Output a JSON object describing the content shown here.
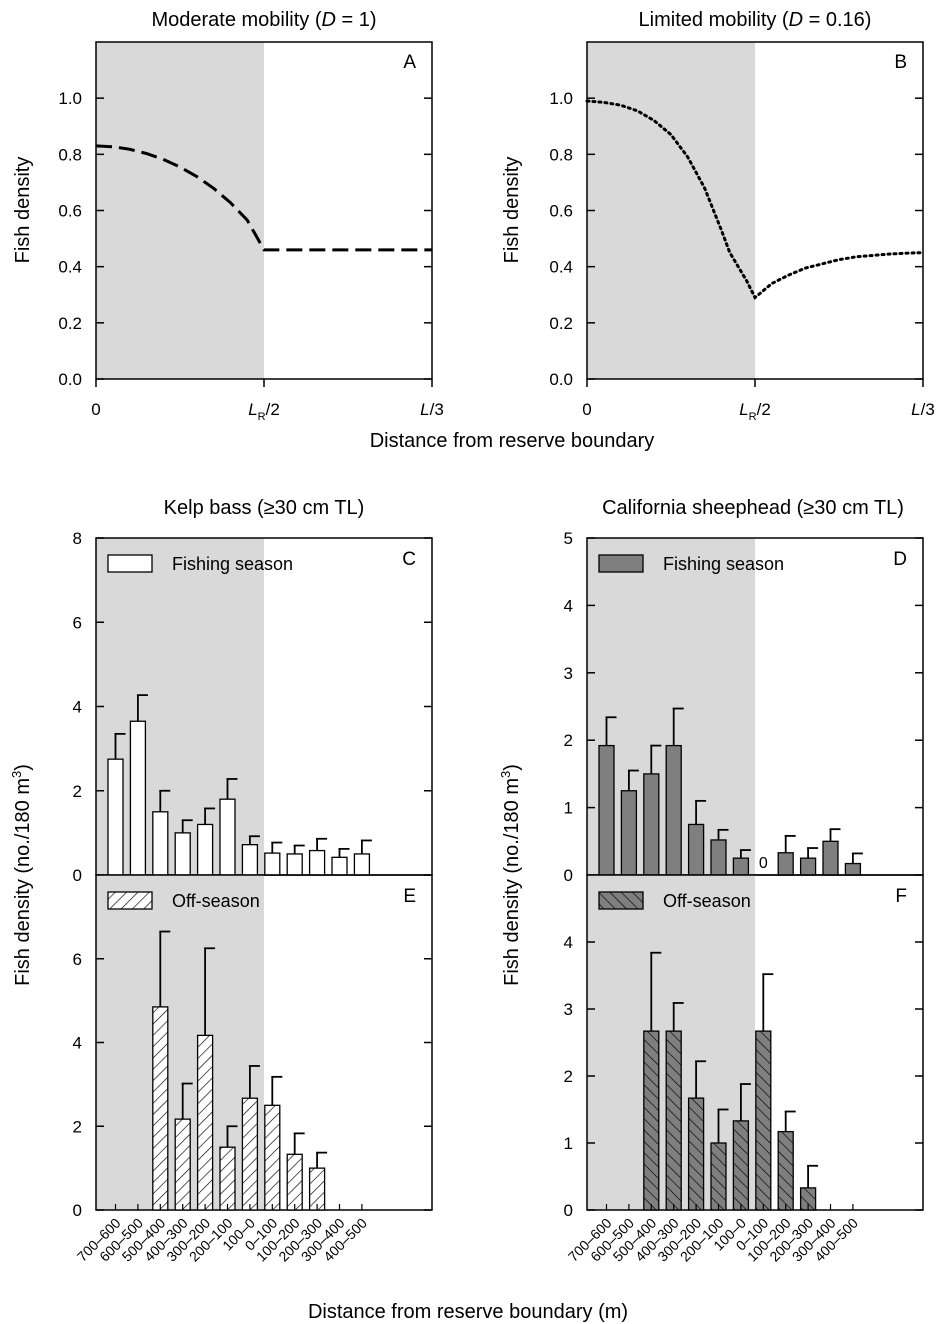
{
  "titles": {
    "A": [
      "Moderate mobility (",
      "D",
      " = 1)"
    ],
    "B": [
      "Limited mobility (",
      "D",
      " = 0.16)"
    ],
    "C": "Kelp bass (≥30 cm TL)",
    "D": "California sheephead (≥30 cm TL)"
  },
  "ylabels": {
    "top": "Fish density",
    "bottom_main": "Fish density (no./180 m",
    "bottom_sup": "3",
    "bottom_close": ")"
  },
  "xlabels": {
    "top": "Distance from reserve boundary",
    "bottom": "Distance from reserve boundary (m)"
  },
  "legend": {
    "fishing": "Fishing season",
    "off": "Off-season"
  },
  "top_xticks": {
    "zero": "0",
    "mid_main": "L",
    "mid_sub": "R",
    "mid_tail": "/2",
    "end_main": "L",
    "end_tail": "/3"
  },
  "categories": [
    "700–600",
    "600–500",
    "500–400",
    "400–300",
    "300–200",
    "200–100",
    "100–0",
    "0–100",
    "100–200",
    "200–300",
    "300–400",
    "400–500"
  ],
  "colors": {
    "reserve_shade": "#d9d9d9",
    "sheephead_bar": "#7f7f7f",
    "kelp_bar": "#ffffff"
  },
  "chart_data": [
    {
      "panel": "A",
      "type": "line",
      "title": "Moderate mobility (D = 1)",
      "xlabel": "Distance from reserve boundary",
      "ylabel": "Fish density",
      "x_ticks": [
        "0",
        "LR/2",
        "L/3"
      ],
      "ylim": [
        0,
        1.2
      ],
      "yticks": [
        "0.0",
        "0.2",
        "0.4",
        "0.6",
        "0.8",
        "1.0"
      ],
      "line_style": "dashed",
      "shaded_region": "reserve (0 to LR/2)",
      "series": [
        {
          "x": [
            0,
            0.1,
            0.2,
            0.3,
            0.4,
            0.5,
            0.6,
            0.7,
            0.8,
            0.9,
            1.0,
            1.5,
            2.0
          ],
          "y": [
            0.83,
            0.827,
            0.818,
            0.803,
            0.782,
            0.755,
            0.721,
            0.679,
            0.628,
            0.566,
            0.46,
            0.46,
            0.46
          ]
        }
      ]
    },
    {
      "panel": "B",
      "type": "line",
      "title": "Limited mobility (D = 0.16)",
      "xlabel": "Distance from reserve boundary",
      "ylabel": "Fish density",
      "x_ticks": [
        "0",
        "LR/2",
        "L/3"
      ],
      "ylim": [
        0,
        1.2
      ],
      "yticks": [
        "0.0",
        "0.2",
        "0.4",
        "0.6",
        "0.8",
        "1.0"
      ],
      "line_style": "dotted",
      "shaded_region": "reserve (0 to LR/2)",
      "series": [
        {
          "x": [
            0,
            0.1,
            0.2,
            0.3,
            0.4,
            0.5,
            0.6,
            0.7,
            0.8,
            0.85,
            0.9,
            0.95,
            1.0,
            1.1,
            1.2,
            1.3,
            1.4,
            1.5,
            1.6,
            1.7,
            1.8,
            1.9,
            2.0
          ],
          "y": [
            0.99,
            0.985,
            0.975,
            0.955,
            0.92,
            0.87,
            0.79,
            0.68,
            0.53,
            0.45,
            0.4,
            0.35,
            0.29,
            0.34,
            0.37,
            0.395,
            0.41,
            0.425,
            0.435,
            0.44,
            0.445,
            0.448,
            0.45
          ]
        }
      ]
    },
    {
      "panel": "C",
      "type": "bar",
      "title": "Kelp bass (≥30 cm TL)",
      "legend": "Fishing season",
      "ylabel": "Fish density (no./180 m3)",
      "ylim": [
        0,
        8
      ],
      "yticks": [
        "0",
        "2",
        "4",
        "6",
        "8"
      ],
      "categories": [
        "700–600",
        "600–500",
        "500–400",
        "400–300",
        "300–200",
        "200–100",
        "100–0",
        "0–100",
        "100–200",
        "200–300",
        "300–400",
        "400–500"
      ],
      "values": [
        2.75,
        3.65,
        1.5,
        1.0,
        1.2,
        1.8,
        0.72,
        0.52,
        0.5,
        0.58,
        0.42,
        0.5
      ],
      "errors": [
        0.6,
        0.62,
        0.5,
        0.3,
        0.38,
        0.48,
        0.2,
        0.25,
        0.2,
        0.28,
        0.2,
        0.32
      ]
    },
    {
      "panel": "D",
      "type": "bar",
      "title": "California sheephead (≥30 cm TL)",
      "legend": "Fishing season",
      "ylabel": "Fish density (no./180 m3)",
      "ylim": [
        0,
        5
      ],
      "yticks": [
        "0",
        "1",
        "2",
        "3",
        "4",
        "5"
      ],
      "categories": [
        "700–600",
        "600–500",
        "500–400",
        "400–300",
        "300–200",
        "200–100",
        "100–0",
        "0–100",
        "100–200",
        "200–300",
        "300–400",
        "400–500"
      ],
      "values": [
        1.92,
        1.25,
        1.5,
        1.92,
        0.75,
        0.52,
        0.25,
        0,
        0.33,
        0.25,
        0.5,
        0.17
      ],
      "errors": [
        0.42,
        0.3,
        0.42,
        0.55,
        0.35,
        0.15,
        0.12,
        0,
        0.25,
        0.15,
        0.18,
        0.15
      ],
      "annotations": [
        "0"
      ]
    },
    {
      "panel": "E",
      "type": "bar",
      "legend": "Off-season",
      "ylabel": "Fish density (no./180 m3)",
      "xlabel": "Distance from reserve boundary (m)",
      "ylim": [
        0,
        8
      ],
      "yticks": [
        "0",
        "2",
        "4",
        "6"
      ],
      "categories": [
        "700–600",
        "600–500",
        "500–400",
        "400–300",
        "300–200",
        "200–100",
        "100–0",
        "0–100",
        "100–200",
        "200–300",
        "300–400",
        "400–500"
      ],
      "values": [
        null,
        null,
        4.85,
        2.17,
        4.17,
        1.5,
        2.67,
        2.5,
        1.33,
        1.0,
        null,
        null
      ],
      "errors": [
        null,
        null,
        1.8,
        0.85,
        2.08,
        0.5,
        0.77,
        0.68,
        0.5,
        0.37,
        null,
        null
      ]
    },
    {
      "panel": "F",
      "type": "bar",
      "legend": "Off-season",
      "ylabel": "Fish density (no./180 m3)",
      "xlabel": "Distance from reserve boundary (m)",
      "ylim": [
        0,
        5
      ],
      "yticks": [
        "0",
        "1",
        "2",
        "3",
        "4"
      ],
      "categories": [
        "700–600",
        "600–500",
        "500–400",
        "400–300",
        "300–200",
        "200–100",
        "100–0",
        "0–100",
        "100–200",
        "200–300",
        "300–400",
        "400–500"
      ],
      "values": [
        null,
        null,
        2.67,
        2.67,
        1.67,
        1.0,
        1.33,
        2.67,
        1.17,
        0.33,
        null,
        null
      ],
      "errors": [
        null,
        null,
        1.17,
        0.42,
        0.55,
        0.5,
        0.55,
        0.85,
        0.3,
        0.33,
        null,
        null
      ]
    }
  ]
}
